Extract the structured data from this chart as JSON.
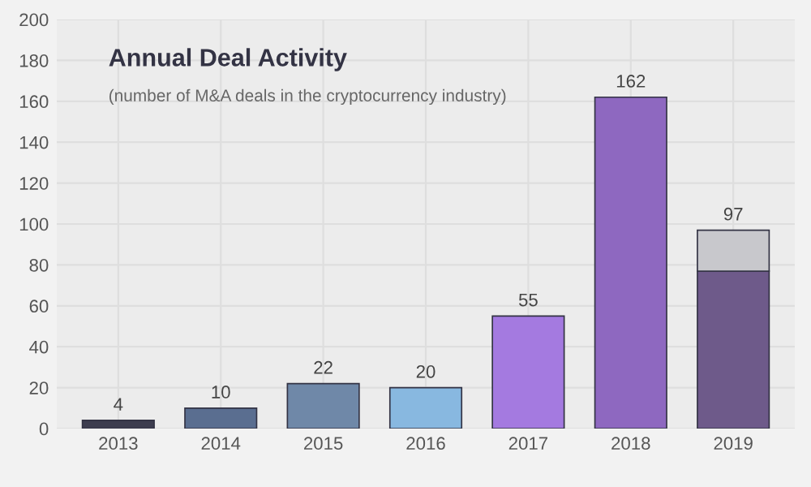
{
  "chart_data": {
    "type": "bar",
    "title": "Annual Deal Activity",
    "subtitle": "(number of M&A deals in the cryptocurrency industry)",
    "categories": [
      "2013",
      "2014",
      "2015",
      "2016",
      "2017",
      "2018",
      "2019"
    ],
    "stacked": true,
    "series": [
      {
        "colors": [
          "#3d3d4f",
          "#5a6e90",
          "#6f88a8",
          "#88b8e0",
          "#a47ae0",
          "#8e68c0",
          "#6e5a8a"
        ],
        "values": [
          4,
          10,
          22,
          20,
          55,
          162,
          77
        ],
        "value_labels": [
          "4",
          "10",
          "22",
          "20",
          "55",
          "162",
          null
        ]
      },
      {
        "color": "#c8c8cc",
        "values": [
          null,
          null,
          null,
          null,
          null,
          null,
          20
        ]
      }
    ],
    "totals": [
      null,
      null,
      null,
      null,
      null,
      null,
      "97"
    ],
    "ylim": [
      0,
      200
    ],
    "yticks": [
      0,
      20,
      40,
      60,
      80,
      100,
      120,
      140,
      160,
      180,
      200
    ],
    "grid": true
  }
}
